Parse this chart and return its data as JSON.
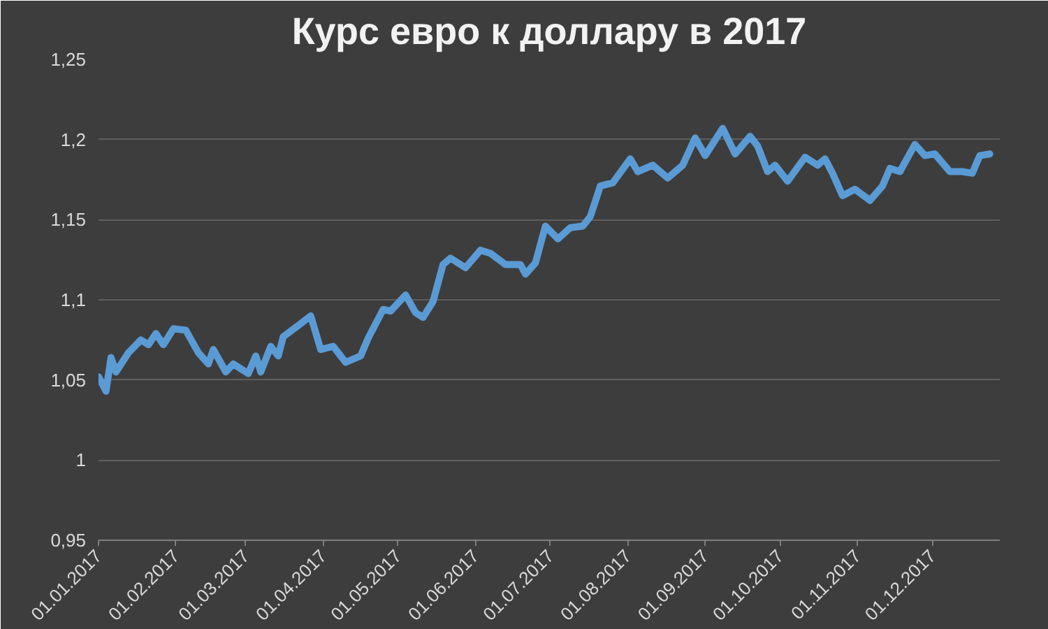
{
  "chart_data": {
    "type": "line",
    "title": "Курс евро к доллару в 2017",
    "x": [
      "2017-01-01",
      "2017-01-04",
      "2017-01-06",
      "2017-01-08",
      "2017-01-13",
      "2017-01-18",
      "2017-01-21",
      "2017-01-24",
      "2017-01-27",
      "2017-01-31",
      "2017-02-05",
      "2017-02-10",
      "2017-02-14",
      "2017-02-16",
      "2017-02-21",
      "2017-02-24",
      "2017-03-02",
      "2017-03-05",
      "2017-03-07",
      "2017-03-11",
      "2017-03-14",
      "2017-03-16",
      "2017-03-22",
      "2017-03-27",
      "2017-03-31",
      "2017-04-05",
      "2017-04-10",
      "2017-04-16",
      "2017-04-19",
      "2017-04-25",
      "2017-04-28",
      "2017-05-04",
      "2017-05-08",
      "2017-05-11",
      "2017-05-15",
      "2017-05-19",
      "2017-05-22",
      "2017-05-28",
      "2017-06-03",
      "2017-06-07",
      "2017-06-13",
      "2017-06-19",
      "2017-06-21",
      "2017-06-25",
      "2017-06-29",
      "2017-07-04",
      "2017-07-09",
      "2017-07-14",
      "2017-07-17",
      "2017-07-21",
      "2017-07-26",
      "2017-08-02",
      "2017-08-05",
      "2017-08-11",
      "2017-08-17",
      "2017-08-23",
      "2017-08-28",
      "2017-09-01",
      "2017-09-08",
      "2017-09-13",
      "2017-09-19",
      "2017-09-22",
      "2017-09-26",
      "2017-09-29",
      "2017-10-04",
      "2017-10-11",
      "2017-10-16",
      "2017-10-19",
      "2017-10-22",
      "2017-10-26",
      "2017-10-31",
      "2017-11-06",
      "2017-11-11",
      "2017-11-14",
      "2017-11-18",
      "2017-11-24",
      "2017-11-28",
      "2017-12-02",
      "2017-12-08",
      "2017-12-13",
      "2017-12-17",
      "2017-12-20",
      "2017-12-24"
    ],
    "series": [
      {
        "color": "#5b9bd5",
        "values": [
          1.052,
          1.043,
          1.064,
          1.055,
          1.067,
          1.075,
          1.072,
          1.079,
          1.072,
          1.082,
          1.081,
          1.067,
          1.06,
          1.069,
          1.055,
          1.06,
          1.054,
          1.065,
          1.055,
          1.071,
          1.065,
          1.077,
          1.084,
          1.09,
          1.069,
          1.071,
          1.061,
          1.065,
          1.076,
          1.094,
          1.093,
          1.103,
          1.092,
          1.089,
          1.099,
          1.122,
          1.126,
          1.12,
          1.131,
          1.129,
          1.122,
          1.122,
          1.116,
          1.123,
          1.146,
          1.138,
          1.145,
          1.146,
          1.152,
          1.171,
          1.173,
          1.188,
          1.18,
          1.184,
          1.176,
          1.184,
          1.201,
          1.19,
          1.207,
          1.191,
          1.202,
          1.196,
          1.18,
          1.184,
          1.174,
          1.189,
          1.184,
          1.188,
          1.179,
          1.165,
          1.169,
          1.162,
          1.171,
          1.182,
          1.18,
          1.197,
          1.19,
          1.191,
          1.18,
          1.18,
          1.179,
          1.19,
          1.191
        ]
      }
    ],
    "xlim": [
      "2017-01-01",
      "2017-12-28"
    ],
    "xticks": [
      {
        "value": "2017-01-01",
        "label": "01.01.2017"
      },
      {
        "value": "2017-02-01",
        "label": "01.02.2017"
      },
      {
        "value": "2017-03-01",
        "label": "01.03.2017"
      },
      {
        "value": "2017-04-01",
        "label": "01.04.2017"
      },
      {
        "value": "2017-05-01",
        "label": "01.05.2017"
      },
      {
        "value": "2017-06-01",
        "label": "01.06.2017"
      },
      {
        "value": "2017-07-01",
        "label": "01.07.2017"
      },
      {
        "value": "2017-08-01",
        "label": "01.08.2017"
      },
      {
        "value": "2017-09-01",
        "label": "01.09.2017"
      },
      {
        "value": "2017-10-01",
        "label": "01.10.2017"
      },
      {
        "value": "2017-11-01",
        "label": "01.11.2017"
      },
      {
        "value": "2017-12-01",
        "label": "01.12.2017"
      }
    ],
    "ylim": [
      0.95,
      1.25
    ],
    "yticks": [
      {
        "value": 0.95,
        "label": "0,95"
      },
      1,
      {
        "value": 1.05,
        "label": "1,05"
      },
      {
        "value": 1.1,
        "label": "1,1"
      },
      {
        "value": 1.15,
        "label": "1,15"
      },
      {
        "value": 1.2,
        "label": "1,2"
      },
      {
        "value": 1.25,
        "label": "1,25"
      }
    ],
    "grid": "y",
    "marker": "none",
    "line_style": "solid"
  }
}
